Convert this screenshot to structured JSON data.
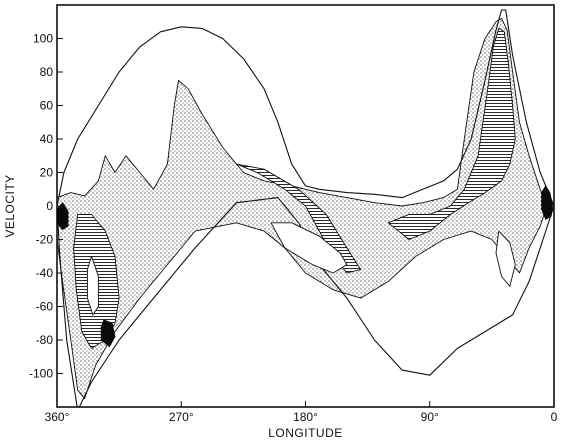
{
  "chart_data": {
    "type": "area",
    "title": "",
    "xlabel": "LONGITUDE",
    "ylabel": "VELOCITY",
    "xlim": [
      360,
      0
    ],
    "ylim": [
      -120,
      120
    ],
    "grid": false,
    "x_ticks": [
      {
        "value": 360,
        "label": "360°"
      },
      {
        "value": 270,
        "label": "270°"
      },
      {
        "value": 180,
        "label": "180°"
      },
      {
        "value": 90,
        "label": "90°"
      },
      {
        "value": 0,
        "label": "0"
      }
    ],
    "y_ticks": [
      {
        "value": 100,
        "label": "100"
      },
      {
        "value": 80,
        "label": "80"
      },
      {
        "value": 60,
        "label": "60"
      },
      {
        "value": 40,
        "label": "40"
      },
      {
        "value": 20,
        "label": "20"
      },
      {
        "value": 0,
        "label": "0"
      },
      {
        "value": -20,
        "label": "-20"
      },
      {
        "value": -40,
        "label": "-40"
      },
      {
        "value": -60,
        "label": "-60"
      },
      {
        "value": -80,
        "label": "-80"
      },
      {
        "value": -100,
        "label": "-100"
      }
    ],
    "contours": [
      {
        "style": "outline",
        "points": [
          [
            360,
            0
          ],
          [
            355,
            20
          ],
          [
            345,
            40
          ],
          [
            330,
            60
          ],
          [
            315,
            80
          ],
          [
            300,
            95
          ],
          [
            285,
            104
          ],
          [
            270,
            107
          ],
          [
            255,
            106
          ],
          [
            240,
            100
          ],
          [
            225,
            88
          ],
          [
            210,
            70
          ],
          [
            200,
            50
          ],
          [
            190,
            25
          ],
          [
            180,
            12
          ],
          [
            170,
            10
          ],
          [
            150,
            8
          ],
          [
            130,
            7
          ],
          [
            110,
            5
          ],
          [
            95,
            10
          ],
          [
            80,
            15
          ],
          [
            70,
            22
          ],
          [
            60,
            40
          ],
          [
            50,
            75
          ],
          [
            42,
            105
          ],
          [
            38,
            117
          ],
          [
            35,
            117
          ],
          [
            30,
            90
          ],
          [
            20,
            50
          ],
          [
            10,
            20
          ],
          [
            0,
            0
          ],
          [
            8,
            -20
          ],
          [
            18,
            -45
          ],
          [
            30,
            -65
          ],
          [
            50,
            -75
          ],
          [
            70,
            -85
          ],
          [
            90,
            -101
          ],
          [
            110,
            -98
          ],
          [
            130,
            -80
          ],
          [
            150,
            -55
          ],
          [
            170,
            -35
          ],
          [
            185,
            -10
          ],
          [
            200,
            5
          ],
          [
            230,
            2
          ],
          [
            260,
            -25
          ],
          [
            290,
            -55
          ],
          [
            315,
            -80
          ],
          [
            335,
            -105
          ],
          [
            345,
            -122
          ],
          [
            353,
            -80
          ],
          [
            358,
            -30
          ],
          [
            360,
            0
          ]
        ]
      },
      {
        "style": "stipple",
        "points": [
          [
            360,
            5
          ],
          [
            350,
            8
          ],
          [
            340,
            6
          ],
          [
            330,
            15
          ],
          [
            325,
            30
          ],
          [
            318,
            20
          ],
          [
            310,
            30
          ],
          [
            300,
            20
          ],
          [
            290,
            10
          ],
          [
            280,
            25
          ],
          [
            275,
            60
          ],
          [
            272,
            75
          ],
          [
            265,
            70
          ],
          [
            255,
            55
          ],
          [
            240,
            35
          ],
          [
            225,
            20
          ],
          [
            210,
            15
          ],
          [
            190,
            12
          ],
          [
            170,
            8
          ],
          [
            150,
            5
          ],
          [
            130,
            2
          ],
          [
            110,
            0
          ],
          [
            95,
            2
          ],
          [
            80,
            5
          ],
          [
            70,
            10
          ],
          [
            65,
            40
          ],
          [
            58,
            80
          ],
          [
            50,
            100
          ],
          [
            42,
            110
          ],
          [
            38,
            112
          ],
          [
            34,
            105
          ],
          [
            30,
            80
          ],
          [
            25,
            50
          ],
          [
            18,
            30
          ],
          [
            10,
            10
          ],
          [
            5,
            0
          ],
          [
            10,
            -12
          ],
          [
            18,
            -25
          ],
          [
            25,
            -40
          ],
          [
            35,
            -30
          ],
          [
            45,
            -20
          ],
          [
            60,
            -15
          ],
          [
            80,
            -20
          ],
          [
            100,
            -30
          ],
          [
            120,
            -45
          ],
          [
            140,
            -55
          ],
          [
            160,
            -50
          ],
          [
            180,
            -40
          ],
          [
            195,
            -25
          ],
          [
            210,
            -15
          ],
          [
            230,
            -10
          ],
          [
            260,
            -15
          ],
          [
            280,
            -35
          ],
          [
            300,
            -55
          ],
          [
            318,
            -75
          ],
          [
            332,
            -95
          ],
          [
            340,
            -115
          ],
          [
            345,
            -110
          ],
          [
            350,
            -80
          ],
          [
            356,
            -45
          ],
          [
            360,
            -20
          ],
          [
            360,
            5
          ]
        ]
      },
      {
        "style": "hatch",
        "points": [
          [
            345,
            -5
          ],
          [
            335,
            -5
          ],
          [
            325,
            -15
          ],
          [
            318,
            -30
          ],
          [
            315,
            -55
          ],
          [
            318,
            -70
          ],
          [
            325,
            -80
          ],
          [
            335,
            -85
          ],
          [
            342,
            -75
          ],
          [
            346,
            -50
          ],
          [
            348,
            -25
          ],
          [
            345,
            -5
          ]
        ]
      },
      {
        "style": "hatch",
        "points": [
          [
            230,
            25
          ],
          [
            215,
            20
          ],
          [
            195,
            10
          ],
          [
            180,
            0
          ],
          [
            170,
            -15
          ],
          [
            160,
            -30
          ],
          [
            150,
            -40
          ],
          [
            140,
            -38
          ],
          [
            150,
            -25
          ],
          [
            165,
            -5
          ],
          [
            185,
            10
          ],
          [
            210,
            22
          ],
          [
            230,
            25
          ]
        ]
      },
      {
        "style": "hatch",
        "points": [
          [
            120,
            -10
          ],
          [
            105,
            -5
          ],
          [
            90,
            -5
          ],
          [
            75,
            0
          ],
          [
            65,
            10
          ],
          [
            55,
            30
          ],
          [
            48,
            70
          ],
          [
            44,
            95
          ],
          [
            40,
            106
          ],
          [
            36,
            104
          ],
          [
            33,
            85
          ],
          [
            30,
            60
          ],
          [
            28,
            40
          ],
          [
            32,
            25
          ],
          [
            38,
            15
          ],
          [
            50,
            8
          ],
          [
            62,
            2
          ],
          [
            75,
            -5
          ],
          [
            90,
            -15
          ],
          [
            105,
            -20
          ],
          [
            120,
            -10
          ]
        ]
      },
      {
        "style": "solid",
        "points": [
          [
            360,
            -2
          ],
          [
            356,
            2
          ],
          [
            352,
            -3
          ],
          [
            352,
            -12
          ],
          [
            356,
            -14
          ],
          [
            360,
            -10
          ],
          [
            360,
            -2
          ]
        ]
      },
      {
        "style": "solid",
        "points": [
          [
            326,
            -68
          ],
          [
            320,
            -70
          ],
          [
            318,
            -78
          ],
          [
            322,
            -84
          ],
          [
            328,
            -80
          ],
          [
            328,
            -72
          ],
          [
            326,
            -68
          ]
        ]
      },
      {
        "style": "solid",
        "points": [
          [
            6,
            12
          ],
          [
            3,
            8
          ],
          [
            1,
            0
          ],
          [
            2,
            -6
          ],
          [
            6,
            -8
          ],
          [
            9,
            -2
          ],
          [
            9,
            8
          ],
          [
            6,
            12
          ]
        ]
      },
      {
        "style": "hole",
        "points": [
          [
            205,
            -10
          ],
          [
            190,
            -10
          ],
          [
            170,
            -18
          ],
          [
            155,
            -28
          ],
          [
            150,
            -35
          ],
          [
            160,
            -40
          ],
          [
            175,
            -35
          ],
          [
            195,
            -25
          ],
          [
            205,
            -10
          ]
        ]
      },
      {
        "style": "hole",
        "points": [
          [
            40,
            -15
          ],
          [
            32,
            -22
          ],
          [
            28,
            -35
          ],
          [
            32,
            -48
          ],
          [
            38,
            -42
          ],
          [
            42,
            -28
          ],
          [
            40,
            -15
          ]
        ]
      },
      {
        "style": "hole",
        "points": [
          [
            335,
            -30
          ],
          [
            330,
            -42
          ],
          [
            330,
            -60
          ],
          [
            334,
            -65
          ],
          [
            338,
            -55
          ],
          [
            338,
            -38
          ],
          [
            335,
            -30
          ]
        ]
      }
    ]
  }
}
